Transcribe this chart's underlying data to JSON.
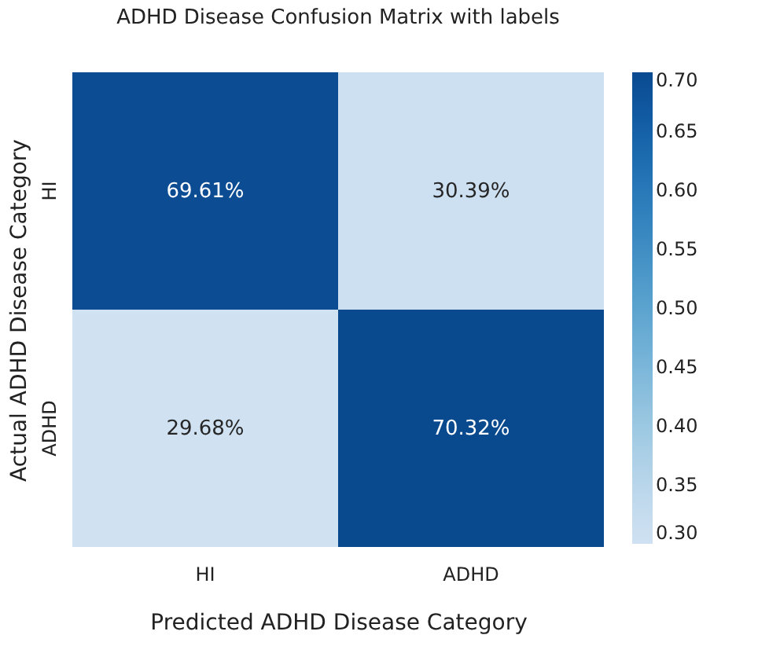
{
  "chart_data": {
    "type": "heatmap",
    "title": "ADHD Disease Confusion Matrix with labels",
    "xlabel": "Predicted ADHD Disease Category",
    "ylabel": "Actual ADHD Disease Category",
    "categories": [
      "HI",
      "ADHD"
    ],
    "y_categories": [
      "HI",
      "ADHD"
    ],
    "cells": [
      [
        0.6961,
        0.3039
      ],
      [
        0.2968,
        0.7032
      ]
    ],
    "cell_labels": [
      [
        "69.61%",
        "30.39%"
      ],
      [
        "29.68%",
        "70.32%"
      ]
    ],
    "clim": [
      0.3,
      0.7
    ],
    "cticks": [
      {
        "value": 0.3,
        "label": "0.30"
      },
      {
        "value": 0.35,
        "label": "0.35"
      },
      {
        "value": 0.4,
        "label": "0.40"
      },
      {
        "value": 0.45,
        "label": "0.45"
      },
      {
        "value": 0.5,
        "label": "0.50"
      },
      {
        "value": 0.55,
        "label": "0.55"
      },
      {
        "value": 0.6,
        "label": "0.60"
      },
      {
        "value": 0.65,
        "label": "0.65"
      },
      {
        "value": 0.7,
        "label": "0.70"
      }
    ]
  }
}
